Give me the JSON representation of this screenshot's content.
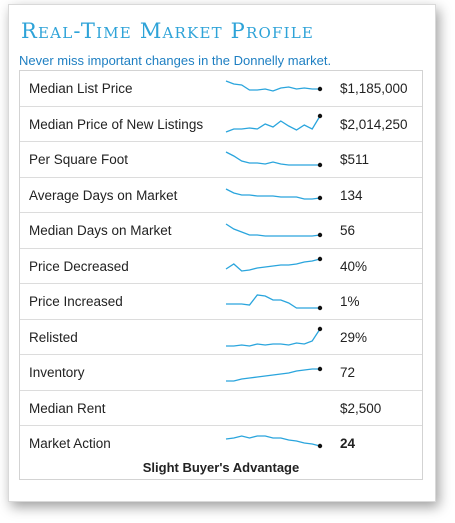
{
  "header": {
    "title": "Real-Time Market Profile",
    "subtitle": "Never miss important changes in the Donnelly market."
  },
  "colors": {
    "title": "#2ea3d8",
    "subtitle": "#1e7fc2",
    "sparkline": "#2aa5dd"
  },
  "rows": [
    {
      "label": "Median List Price",
      "value": "$1,185,000",
      "trend": [
        0.9,
        0.75,
        0.7,
        0.45,
        0.45,
        0.5,
        0.4,
        0.55,
        0.6,
        0.5,
        0.55,
        0.5,
        0.5
      ]
    },
    {
      "label": "Median Price of New Listings",
      "value": "$2,014,250",
      "trend": [
        0.15,
        0.3,
        0.3,
        0.35,
        0.3,
        0.55,
        0.4,
        0.7,
        0.45,
        0.25,
        0.5,
        0.3,
        0.95
      ]
    },
    {
      "label": "Per Square Foot",
      "value": "$511",
      "trend": [
        0.9,
        0.7,
        0.45,
        0.35,
        0.35,
        0.3,
        0.4,
        0.3,
        0.25,
        0.25,
        0.25,
        0.25,
        0.25
      ]
    },
    {
      "label": "Average Days on Market",
      "value": "134",
      "trend": [
        0.85,
        0.65,
        0.55,
        0.55,
        0.5,
        0.5,
        0.5,
        0.45,
        0.45,
        0.45,
        0.35,
        0.35,
        0.4
      ]
    },
    {
      "label": "Median Days on Market",
      "value": "56",
      "trend": [
        0.85,
        0.6,
        0.45,
        0.3,
        0.3,
        0.25,
        0.25,
        0.25,
        0.25,
        0.25,
        0.25,
        0.25,
        0.3
      ]
    },
    {
      "label": "Price Decreased",
      "value": "40%",
      "trend": [
        0.4,
        0.65,
        0.3,
        0.35,
        0.45,
        0.5,
        0.55,
        0.6,
        0.6,
        0.65,
        0.75,
        0.8,
        0.9
      ]
    },
    {
      "label": "Price Increased",
      "value": "1%",
      "trend": [
        0.4,
        0.4,
        0.4,
        0.35,
        0.85,
        0.8,
        0.6,
        0.6,
        0.45,
        0.2,
        0.2,
        0.2,
        0.2
      ]
    },
    {
      "label": "Relisted",
      "value": "29%",
      "trend": [
        0.1,
        0.1,
        0.15,
        0.1,
        0.2,
        0.15,
        0.2,
        0.2,
        0.15,
        0.25,
        0.2,
        0.35,
        0.95
      ]
    },
    {
      "label": "Inventory",
      "value": "72",
      "trend": [
        0.1,
        0.1,
        0.2,
        0.25,
        0.3,
        0.35,
        0.4,
        0.45,
        0.5,
        0.6,
        0.65,
        0.7,
        0.7
      ]
    },
    {
      "label": "Median Rent",
      "value": "$2,500",
      "trend": null
    },
    {
      "label": "Market Action",
      "value": "24",
      "value_bold": true,
      "trend": [
        0.75,
        0.8,
        0.9,
        0.8,
        0.9,
        0.9,
        0.8,
        0.8,
        0.7,
        0.65,
        0.55,
        0.5,
        0.4
      ]
    }
  ],
  "footer": {
    "market_condition": "Slight Buyer's Advantage"
  }
}
